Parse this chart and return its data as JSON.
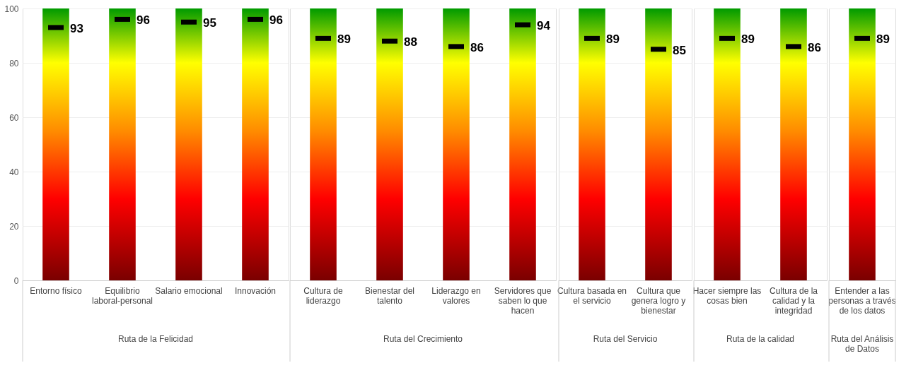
{
  "chart_data": [
    {
      "type": "bar",
      "xlabel": "Ruta de la Felicidad",
      "categories": [
        "Entorno físico",
        "Equilibrio laboral-personal",
        "Salario emocional",
        "Innovación"
      ],
      "ylim": [
        0,
        100
      ],
      "yticks": [
        0,
        20,
        40,
        60,
        80,
        100
      ],
      "grid": "y",
      "series": [
        {
          "values": [
            100,
            100,
            100,
            100
          ]
        },
        {
          "type": "scatter",
          "color": "#000000",
          "values": [
            93,
            96,
            95,
            96
          ],
          "value_labels": [
            "93",
            "96",
            "95",
            "96"
          ]
        }
      ]
    },
    {
      "type": "bar",
      "xlabel": "Ruta del Crecimiento",
      "categories": [
        "Cultura de liderazgo",
        "Bienestar del talento",
        "Liderazgo en valores",
        "Servidores que saben lo que hacen"
      ],
      "ylim": [
        0,
        100
      ],
      "yticks": [
        0,
        20,
        40,
        60,
        80,
        100
      ],
      "grid": "y",
      "tick_labels": "x",
      "series": [
        {
          "values": [
            100,
            100,
            100,
            100
          ]
        },
        {
          "type": "scatter",
          "color": "#000000",
          "values": [
            89,
            88,
            86,
            94
          ],
          "value_labels": [
            "89",
            "88",
            "86",
            "94"
          ]
        }
      ]
    },
    {
      "type": "bar",
      "xlabel": "Ruta del Servicio",
      "categories": [
        "Cultura basada en el servicio",
        "Cultura que genera logro y bienestar"
      ],
      "ylim": [
        0,
        100
      ],
      "yticks": [
        0,
        20,
        40,
        60,
        80,
        100
      ],
      "grid": "y",
      "tick_labels": "x",
      "series": [
        {
          "values": [
            100,
            100
          ]
        },
        {
          "type": "scatter",
          "color": "#000000",
          "values": [
            89,
            85
          ],
          "value_labels": [
            "89",
            "85"
          ]
        }
      ]
    },
    {
      "type": "bar",
      "xlabel": "Ruta de la calidad",
      "categories": [
        "Hacer siempre las cosas bien",
        "Cultura de la calidad y la integridad"
      ],
      "ylim": [
        0,
        100
      ],
      "yticks": [
        0,
        20,
        40,
        60,
        80,
        100
      ],
      "grid": "y",
      "tick_labels": "x",
      "series": [
        {
          "values": [
            100,
            100
          ]
        },
        {
          "type": "scatter",
          "color": "#000000",
          "values": [
            89,
            86
          ],
          "value_labels": [
            "89",
            "86"
          ]
        }
      ]
    },
    {
      "type": "bar",
      "xlabel": "Ruta del Análisis de Datos",
      "categories": [
        "Entender a las personas a través de los datos"
      ],
      "ylim": [
        0,
        100
      ],
      "yticks": [
        0,
        20,
        40,
        60,
        80,
        100
      ],
      "grid": "y",
      "tick_labels": "x",
      "series": [
        {
          "values": [
            100
          ]
        },
        {
          "type": "scatter",
          "color": "#000000",
          "values": [
            89
          ],
          "value_labels": [
            "89"
          ]
        }
      ]
    }
  ]
}
